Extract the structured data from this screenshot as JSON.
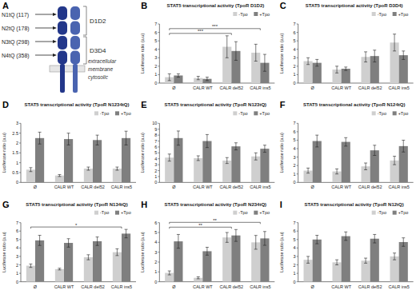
{
  "diagram": {
    "panel_label": "A",
    "sites": [
      "N1tQ (117)",
      "N2tQ (178)",
      "N3tQ (298)",
      "N4tQ (358)"
    ],
    "domains": [
      "D1D2",
      "D3D4"
    ],
    "regions": [
      "extracellular",
      "membrane",
      "cytosolic"
    ]
  },
  "chart_data": [
    {
      "type": "bar",
      "panel_label": "B",
      "title": "STAT5 transcriptional activity (TpoR D1D2)",
      "y_label": "Luciferase ratio (a.u)",
      "categories": [
        "Ø",
        "CALR WT",
        "CALR del52",
        "CALR ins5"
      ],
      "series": [
        {
          "name": "-Tpo",
          "color": "#cfcfcf",
          "values": [
            0.7,
            0.6,
            4.3,
            3.6
          ],
          "errors": [
            0.4,
            0.2,
            1.3,
            1.0
          ]
        },
        {
          "name": "+Tpo",
          "color": "#7f7f7f",
          "values": [
            0.9,
            0.5,
            3.8,
            2.4
          ],
          "errors": [
            0.2,
            0.2,
            1.1,
            1.0
          ]
        }
      ],
      "ylim": [
        0,
        7
      ],
      "yticks": [
        0,
        1,
        2,
        3,
        4,
        5,
        6,
        7
      ],
      "grid": false,
      "legend": "upper right",
      "annotations": [
        {
          "text": "***",
          "from": "Ø",
          "to": "CALR del52"
        },
        {
          "text": "***",
          "from": "Ø",
          "to": "CALR ins5"
        }
      ]
    },
    {
      "type": "bar",
      "panel_label": "C",
      "title": "STAT5 transcriptional activity (TpoR D3D4)",
      "y_label": "Luciferase ratio (a.u)",
      "categories": [
        "Ø",
        "CALR WT",
        "CALR del52",
        "CALR ins5"
      ],
      "series": [
        {
          "name": "-Tpo",
          "color": "#cfcfcf",
          "values": [
            2.6,
            1.6,
            3.1,
            4.8
          ],
          "errors": [
            0.4,
            0.4,
            0.6,
            1.0
          ]
        },
        {
          "name": "+Tpo",
          "color": "#7f7f7f",
          "values": [
            2.4,
            1.7,
            3.2,
            3.3
          ],
          "errors": [
            0.4,
            0.2,
            0.7,
            0.5
          ]
        }
      ],
      "ylim": [
        0,
        7
      ],
      "yticks": [
        0,
        1,
        2,
        3,
        4,
        5,
        6,
        7
      ],
      "grid": false,
      "legend": "upper right"
    },
    {
      "type": "bar",
      "panel_label": "D",
      "title": "STAT5 transcriptional activity (TpoR N1234tQ)",
      "y_label": "Luciferase ratio (a.u)",
      "categories": [
        "Ø",
        "CALR WT",
        "CALR del52",
        "CALR ins5"
      ],
      "series": [
        {
          "name": "-Tpo",
          "color": "#cfcfcf",
          "values": [
            0.65,
            0.35,
            0.7,
            0.7
          ],
          "errors": [
            0.1,
            0.05,
            0.08,
            0.08
          ]
        },
        {
          "name": "+Tpo",
          "color": "#7f7f7f",
          "values": [
            2.25,
            2.2,
            2.15,
            2.25
          ],
          "errors": [
            0.3,
            0.3,
            0.25,
            0.35
          ]
        }
      ],
      "ylim": [
        0,
        3
      ],
      "yticks": [
        0,
        0.5,
        1,
        1.5,
        2,
        2.5,
        3
      ],
      "grid": false,
      "legend": "upper right"
    },
    {
      "type": "bar",
      "panel_label": "E",
      "title": "STAT5 transcriptional activity (TpoR N123tQ)",
      "y_label": "Luciferase ratio (a.u)",
      "categories": [
        "Ø",
        "CALR WT",
        "CALR del52",
        "CALR ins5"
      ],
      "series": [
        {
          "name": "-Tpo",
          "color": "#cfcfcf",
          "values": [
            4.2,
            4.1,
            3.7,
            4.4
          ],
          "errors": [
            0.6,
            0.4,
            0.5,
            0.6
          ]
        },
        {
          "name": "+Tpo",
          "color": "#7f7f7f",
          "values": [
            7.5,
            7.0,
            6.1,
            5.7
          ],
          "errors": [
            1.2,
            1.1,
            0.6,
            0.6
          ]
        }
      ],
      "ylim": [
        0,
        10
      ],
      "yticks": [
        0,
        1,
        2,
        3,
        4,
        5,
        6,
        7,
        8,
        9,
        10
      ],
      "grid": false,
      "legend": "upper right"
    },
    {
      "type": "bar",
      "panel_label": "F",
      "title": "STAT5 transcriptional activity (TpoR N124tQ)",
      "y_label": "Luciferase ratio (a.u)",
      "categories": [
        "Ø",
        "CALR WT",
        "CALR del52",
        "CALR ins5"
      ],
      "series": [
        {
          "name": "-Tpo",
          "color": "#cfcfcf",
          "values": [
            1.4,
            1.3,
            1.9,
            2.6
          ],
          "errors": [
            0.3,
            0.3,
            0.4,
            0.5
          ]
        },
        {
          "name": "+Tpo",
          "color": "#7f7f7f",
          "values": [
            4.9,
            4.8,
            3.8,
            4.3
          ],
          "errors": [
            0.7,
            0.5,
            0.6,
            0.7
          ]
        }
      ],
      "ylim": [
        0,
        7
      ],
      "yticks": [
        0,
        1,
        2,
        3,
        4,
        5,
        6,
        7
      ],
      "grid": false,
      "legend": "upper right"
    },
    {
      "type": "bar",
      "panel_label": "G",
      "title": "STAT5 transcriptional activity (TpoR N134tQ)",
      "y_label": "Luciferase ratio (a.u)",
      "categories": [
        "Ø",
        "CALR WT",
        "CALR del52",
        "CALR ins5"
      ],
      "series": [
        {
          "name": "-Tpo",
          "color": "#cfcfcf",
          "values": [
            1.9,
            1.5,
            2.9,
            3.5
          ],
          "errors": [
            0.2,
            0.1,
            0.3,
            0.4
          ]
        },
        {
          "name": "+Tpo",
          "color": "#7f7f7f",
          "values": [
            4.9,
            4.6,
            4.8,
            5.7
          ],
          "errors": [
            0.6,
            0.5,
            0.5,
            0.5
          ]
        }
      ],
      "ylim": [
        0,
        7
      ],
      "yticks": [
        0,
        1,
        2,
        3,
        4,
        5,
        6,
        7
      ],
      "grid": false,
      "legend": "upper right",
      "annotations": [
        {
          "text": "*",
          "from": "Ø",
          "to": "CALR ins5"
        }
      ]
    },
    {
      "type": "bar",
      "panel_label": "H",
      "title": "STAT5 transcriptional activity (TpoR N234tQ)",
      "y_label": "Luciferase ratio (a.u)",
      "categories": [
        "Ø",
        "CALR WT",
        "CALR del52",
        "CALR ins5"
      ],
      "series": [
        {
          "name": "-Tpo",
          "color": "#cfcfcf",
          "values": [
            0.9,
            0.4,
            4.5,
            4.0
          ],
          "errors": [
            0.2,
            0.1,
            0.5,
            0.7
          ]
        },
        {
          "name": "+Tpo",
          "color": "#7f7f7f",
          "values": [
            4.1,
            3.1,
            4.7,
            4.4
          ],
          "errors": [
            0.7,
            0.4,
            0.6,
            0.7
          ]
        }
      ],
      "ylim": [
        0,
        6
      ],
      "yticks": [
        0,
        1,
        2,
        3,
        4,
        5,
        6
      ],
      "grid": false,
      "legend": "upper right",
      "annotations": [
        {
          "text": "**",
          "from": "Ø",
          "to": "CALR del52"
        },
        {
          "text": "**",
          "from": "Ø",
          "to": "CALR ins5"
        }
      ]
    },
    {
      "type": "bar",
      "panel_label": "I",
      "title": "STAT5 transcriptional activity (TpoR N12tQ)",
      "y_label": "Luciferase ratio (a.u)",
      "categories": [
        "Ø",
        "CALR WT",
        "CALR del52",
        "CALR ins5"
      ],
      "series": [
        {
          "name": "-Tpo",
          "color": "#cfcfcf",
          "values": [
            2.6,
            2.3,
            2.5,
            3.0
          ],
          "errors": [
            0.4,
            0.3,
            0.3,
            0.4
          ]
        },
        {
          "name": "+Tpo",
          "color": "#7f7f7f",
          "values": [
            5.0,
            5.4,
            5.1,
            4.7
          ],
          "errors": [
            0.5,
            0.5,
            0.5,
            0.5
          ]
        }
      ],
      "ylim": [
        0,
        7
      ],
      "yticks": [
        0,
        1,
        2,
        3,
        4,
        5,
        6,
        7
      ],
      "grid": false,
      "legend": "upper right"
    }
  ]
}
